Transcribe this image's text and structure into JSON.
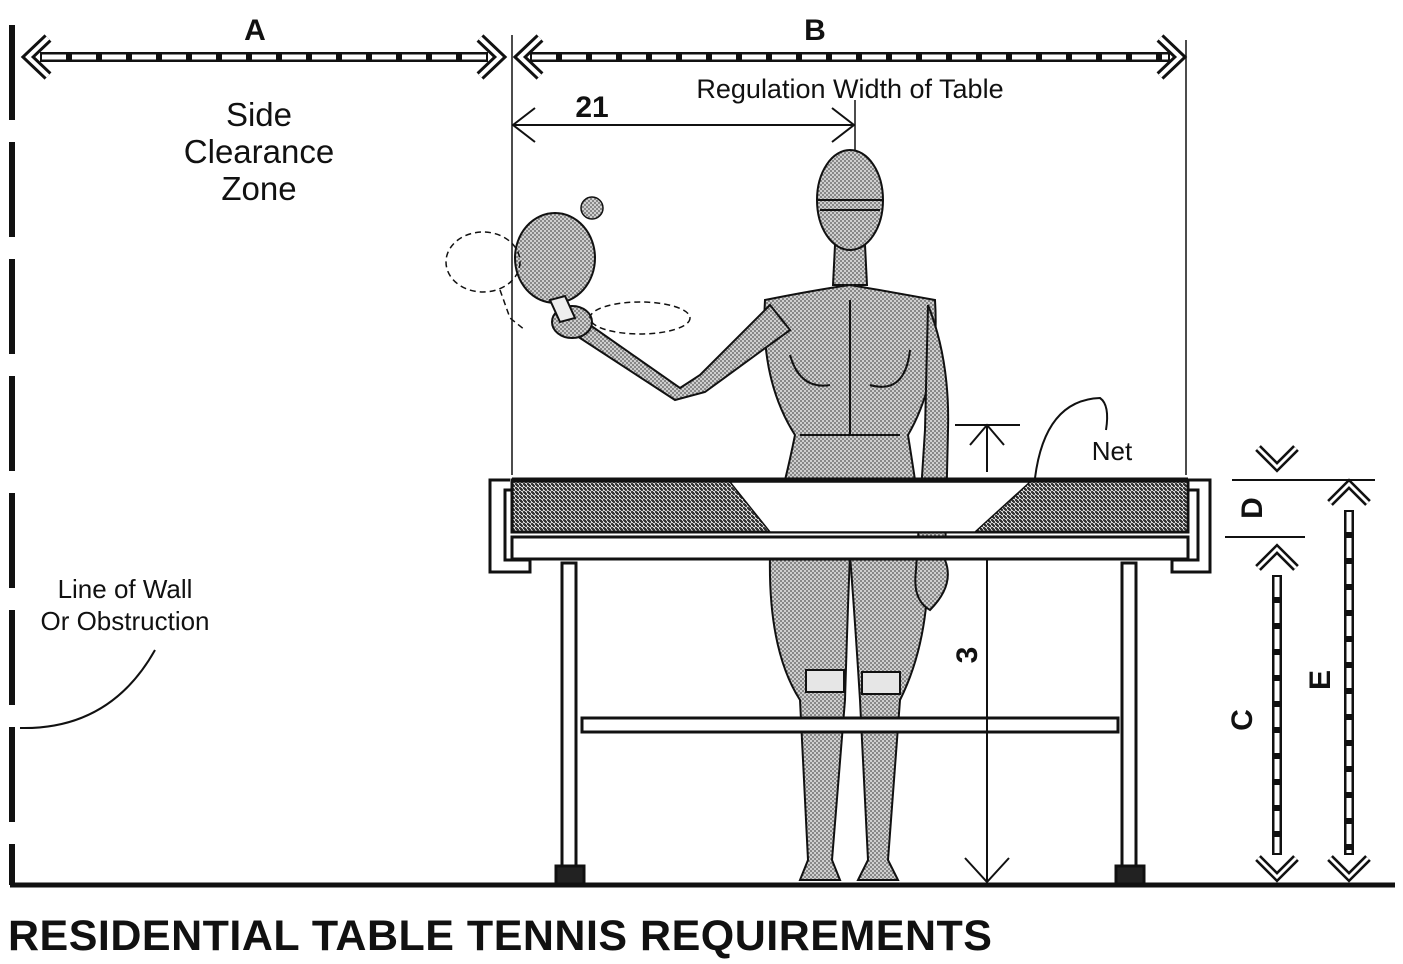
{
  "title": "RESIDENTIAL TABLE TENNIS REQUIREMENTS",
  "labels": {
    "a": "A",
    "b": "B",
    "c": "C",
    "d": "D",
    "e": "E",
    "dim_21": "21",
    "dim_3": "3",
    "regulation_width": "Regulation Width of Table",
    "side_clearance": [
      "Side",
      "Clearance",
      "Zone"
    ],
    "net": "Net",
    "wall": [
      "Line of Wall",
      "Or Obstruction"
    ]
  },
  "colors": {
    "ink": "#111111",
    "shade": "#9a9a9a",
    "paper": "#ffffff"
  }
}
